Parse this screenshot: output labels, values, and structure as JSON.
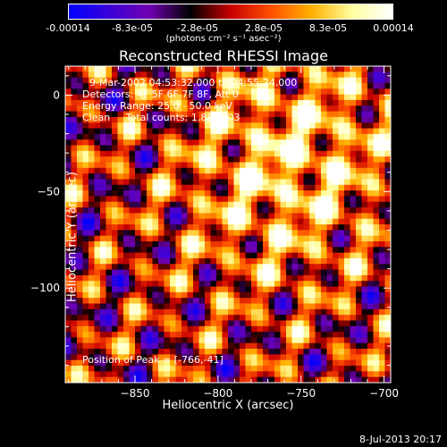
{
  "colorbar": {
    "ticks": [
      "-0.00014",
      "-8.3e-05",
      "-2.8e-05",
      "2.8e-05",
      "8.3e-05",
      "0.00014"
    ],
    "tick_values": [
      -0.00014,
      -8.3e-05,
      -2.8e-05,
      2.8e-05,
      8.3e-05,
      0.00014
    ],
    "unit_label": "(photons cm⁻² s⁻¹ asec⁻²)",
    "colors": [
      "#0000ff",
      "#3a00d8",
      "#7000b0",
      "#000000",
      "#c80000",
      "#ff5000",
      "#ffb000",
      "#ffffa0",
      "#ffffff"
    ]
  },
  "info": {
    "time_range": "9-Mar-2002 04:53:32.000 to 04:55:24.000",
    "detectors": "Detectors: 4F 5F 6F 7F 8F, Att 0",
    "energy": "Energy Range: 25.0 - 50.0 keV",
    "clean": "Clean     Total counts: 1.88E+03"
  },
  "peak_text": "Position of Peak = [-766,-41]",
  "footer_date": "8-Jul-2013 20:17",
  "chart_data": {
    "type": "heatmap",
    "title": "Reconstructed RHESSI Image",
    "xlabel": "Heliocentric X (arcsec)",
    "ylabel": "Heliocentric Y (arcsec)",
    "xlim": [
      -892,
      -696
    ],
    "ylim": [
      -149,
      15
    ],
    "xticks": [
      -850,
      -800,
      -750,
      -700
    ],
    "yticks": [
      0,
      -50,
      -100
    ],
    "peak": [
      -766,
      -41
    ],
    "value_range": [
      -0.00014,
      0.00014
    ]
  }
}
